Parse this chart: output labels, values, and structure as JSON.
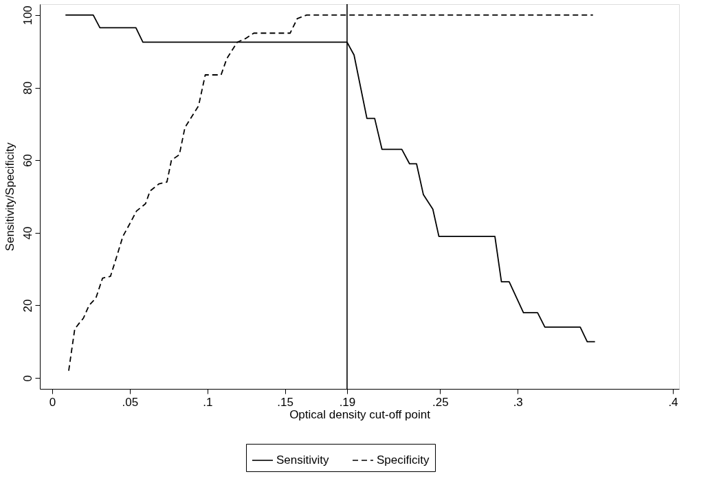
{
  "chart_data": {
    "type": "line",
    "xlabel": "Optical density cut-off point",
    "ylabel": "Sensitivity/Specificity",
    "xlim": [
      -0.008,
      0.404
    ],
    "ylim": [
      -3,
      103
    ],
    "xticks": [
      0,
      {
        "value": 0.05,
        "label": ".05"
      },
      {
        "value": 0.1,
        "label": ".1"
      },
      {
        "value": 0.15,
        "label": ".15"
      },
      {
        "value": 0.19,
        "label": ".19"
      },
      {
        "value": 0.25,
        "label": ".25"
      },
      {
        "value": 0.3,
        "label": ".3"
      },
      {
        "value": 0.4,
        "label": ".4"
      }
    ],
    "yticks": [
      0,
      20,
      40,
      60,
      80,
      100
    ],
    "grid": false,
    "legend": "bottom",
    "marker": "none",
    "ref_lines": [
      {
        "axis": "x",
        "value": 0.19,
        "color": "#000000",
        "line_style": "solid"
      }
    ],
    "series": [
      {
        "name": "Sensitivity",
        "color": "#000000",
        "line_style": "solid",
        "x": [
          0.0085,
          0.0264,
          0.0307,
          0.0539,
          0.0584,
          0.19,
          0.1945,
          0.2028,
          0.2078,
          0.2125,
          0.2253,
          0.2303,
          0.2348,
          0.2392,
          0.2453,
          0.2492,
          0.2853,
          0.2895,
          0.2945,
          0.3037,
          0.3128,
          0.3175,
          0.3403,
          0.3448,
          0.3498
        ],
        "values": [
          100,
          100,
          96.5,
          96.5,
          92.5,
          92.5,
          89,
          71.5,
          71.5,
          63,
          63,
          59,
          59,
          50.5,
          46.5,
          39,
          39,
          26.5,
          26.5,
          18,
          18,
          14,
          14,
          10,
          10
        ]
      },
      {
        "name": "Specificity",
        "color": "#000000",
        "line_style": "dashed",
        "x": [
          0.0106,
          0.0121,
          0.0145,
          0.0172,
          0.0201,
          0.0237,
          0.0281,
          0.0324,
          0.0375,
          0.0412,
          0.0455,
          0.0506,
          0.0543,
          0.0601,
          0.063,
          0.0688,
          0.0739,
          0.0768,
          0.0819,
          0.0855,
          0.0943,
          0.0986,
          0.1088,
          0.1125,
          0.1192,
          0.1245,
          0.1299,
          0.1533,
          0.1579,
          0.164,
          0.3485
        ],
        "values": [
          2,
          6.5,
          13.5,
          15,
          16.5,
          20,
          22,
          27.5,
          28,
          33,
          39,
          43,
          46,
          48,
          51.5,
          53.5,
          54,
          60,
          61.5,
          69,
          75,
          83.5,
          83.5,
          88,
          92.5,
          93.5,
          95,
          95,
          99,
          100,
          100
        ]
      }
    ]
  }
}
